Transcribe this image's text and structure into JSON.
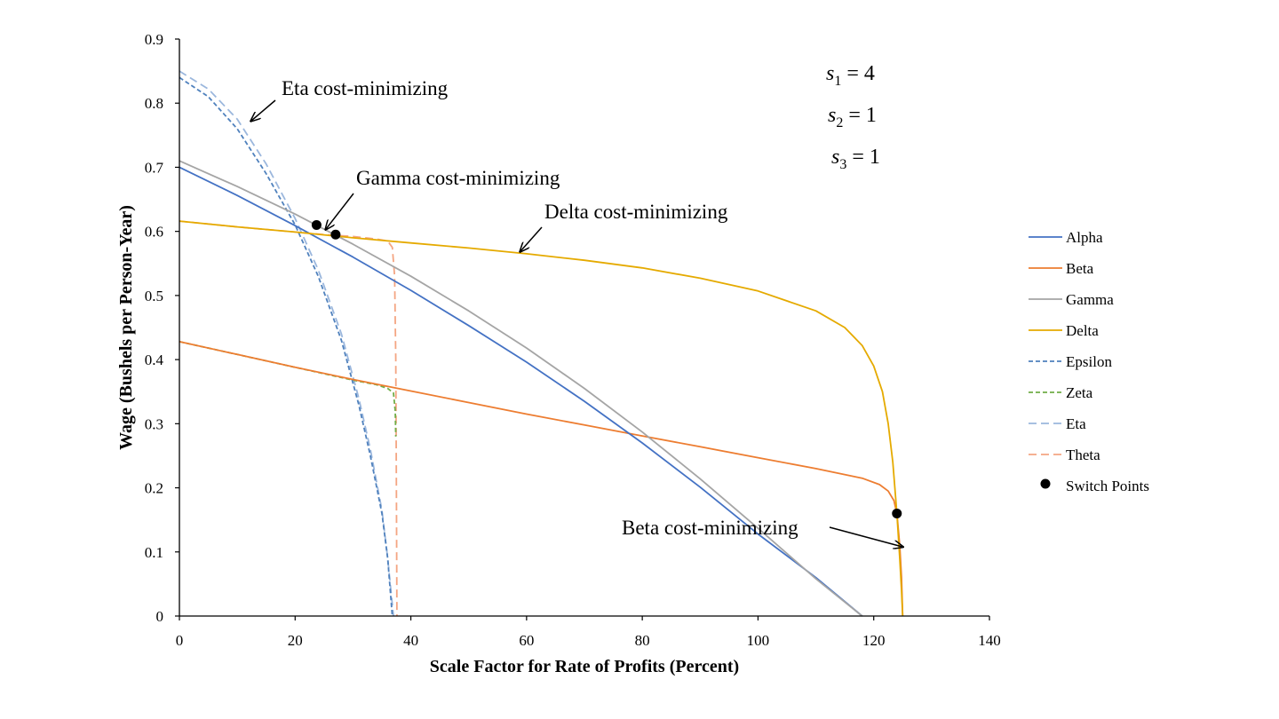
{
  "chart_data": {
    "type": "line",
    "title": "",
    "xlabel": "Scale Factor for Rate of Profits (Percent)",
    "ylabel": "Wage (Bushels per Person-Year)",
    "xlim": [
      0,
      140
    ],
    "ylim": [
      0,
      0.9
    ],
    "xticks": [
      0,
      20,
      40,
      60,
      80,
      100,
      120,
      140
    ],
    "xtick_labels": [
      "0",
      "20",
      "40",
      "60",
      "80",
      "100",
      "120",
      "140"
    ],
    "yticks": [
      0,
      0.1,
      0.2,
      0.3,
      0.4,
      0.5,
      0.6,
      0.7,
      0.8,
      0.9
    ],
    "ytick_labels": [
      "0",
      "0.1",
      "0.2",
      "0.3",
      "0.4",
      "0.5",
      "0.6",
      "0.7",
      "0.8",
      "0.9"
    ],
    "grid": false,
    "legend_position": "right",
    "series": [
      {
        "name": "Alpha",
        "color": "#4472C4",
        "style": "solid",
        "x": [
          0,
          10,
          20,
          30,
          40,
          50,
          60,
          70,
          80,
          90,
          100,
          110,
          118
        ],
        "y": [
          0.7,
          0.656,
          0.609,
          0.56,
          0.508,
          0.453,
          0.396,
          0.335,
          0.27,
          0.201,
          0.128,
          0.06,
          0.0
        ]
      },
      {
        "name": "Beta",
        "color": "#ED7D31",
        "style": "solid",
        "x": [
          0,
          10,
          20,
          30,
          40,
          50,
          60,
          70,
          80,
          90,
          100,
          110,
          118,
          121,
          122.5,
          123.5,
          124,
          124.5,
          124.8,
          125
        ],
        "y": [
          0.428,
          0.408,
          0.388,
          0.369,
          0.351,
          0.333,
          0.315,
          0.298,
          0.281,
          0.264,
          0.247,
          0.23,
          0.215,
          0.205,
          0.195,
          0.18,
          0.16,
          0.11,
          0.06,
          0.0
        ]
      },
      {
        "name": "Gamma",
        "color": "#A5A5A5",
        "style": "solid",
        "x": [
          0,
          10,
          20,
          30,
          40,
          50,
          60,
          70,
          80,
          90,
          100,
          110,
          118
        ],
        "y": [
          0.71,
          0.67,
          0.627,
          0.58,
          0.53,
          0.476,
          0.418,
          0.355,
          0.287,
          0.214,
          0.137,
          0.058,
          0.0
        ]
      },
      {
        "name": "Delta",
        "color": "#E5AA00",
        "style": "solid",
        "x": [
          0,
          10,
          20,
          30,
          40,
          50,
          60,
          70,
          80,
          90,
          100,
          110,
          115,
          118,
          120,
          121.5,
          122.5,
          123.3,
          124,
          124.5,
          124.8,
          125
        ],
        "y": [
          0.616,
          0.607,
          0.599,
          0.59,
          0.582,
          0.574,
          0.565,
          0.555,
          0.543,
          0.527,
          0.507,
          0.476,
          0.45,
          0.422,
          0.39,
          0.35,
          0.3,
          0.24,
          0.16,
          0.09,
          0.04,
          0.0
        ]
      },
      {
        "name": "Epsilon",
        "color": "#4F81BD",
        "style": "dash-short",
        "x": [
          0,
          5,
          10,
          15,
          20,
          24,
          28,
          31,
          33,
          35,
          36,
          36.8
        ],
        "y": [
          0.84,
          0.81,
          0.76,
          0.69,
          0.61,
          0.53,
          0.43,
          0.33,
          0.25,
          0.16,
          0.09,
          0.0
        ]
      },
      {
        "name": "Zeta",
        "color": "#70AD47",
        "style": "dash-short",
        "x": [
          0,
          10,
          20,
          30,
          34,
          36,
          37,
          37.3,
          37.4
        ],
        "y": [
          0.428,
          0.408,
          0.388,
          0.368,
          0.361,
          0.355,
          0.348,
          0.32,
          0.28
        ]
      },
      {
        "name": "Eta",
        "color": "#9BB7DD",
        "style": "dash-long",
        "x": [
          0,
          5,
          10,
          15,
          20,
          24,
          28,
          31,
          33,
          35,
          36,
          37
        ],
        "y": [
          0.85,
          0.822,
          0.775,
          0.705,
          0.62,
          0.54,
          0.44,
          0.34,
          0.26,
          0.165,
          0.09,
          0.0
        ]
      },
      {
        "name": "Theta",
        "color": "#F4A582",
        "style": "dash-long",
        "x": [
          0,
          10,
          20,
          25,
          30,
          34,
          36,
          36.8,
          37.2,
          37.4,
          37.5,
          37.6
        ],
        "y": [
          0.616,
          0.607,
          0.599,
          0.595,
          0.592,
          0.588,
          0.585,
          0.575,
          0.53,
          0.4,
          0.2,
          0.0
        ]
      }
    ],
    "switch_points": {
      "name": "Switch Points",
      "color": "#000000",
      "x": [
        23.7,
        27.0,
        124.0
      ],
      "y": [
        0.61,
        0.595,
        0.16
      ]
    },
    "annotations": [
      {
        "text": "Eta cost-minimizing"
      },
      {
        "text": "Gamma cost-minimizing"
      },
      {
        "text": "Delta cost-minimizing"
      },
      {
        "text": "Beta cost-minimizing"
      }
    ],
    "parameters": [
      {
        "symbol": "s",
        "subscript": "1",
        "value": "4"
      },
      {
        "symbol": "s",
        "subscript": "2",
        "value": "1"
      },
      {
        "symbol": "s",
        "subscript": "3",
        "value": "1"
      }
    ]
  }
}
